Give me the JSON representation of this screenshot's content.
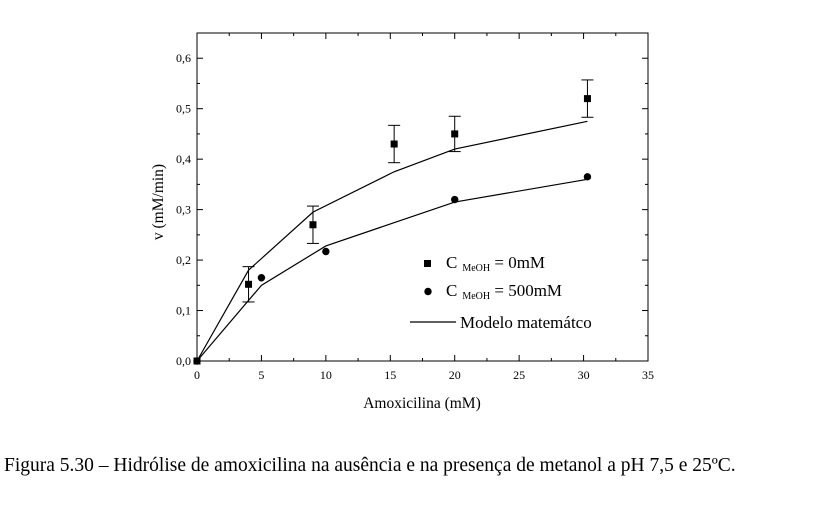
{
  "chart_data": {
    "type": "scatter",
    "xlabel": "Amoxicilina (mM)",
    "ylabel": "v (mM/min)",
    "xlim": [
      0,
      35
    ],
    "ylim": [
      0,
      0.65
    ],
    "xticks": [
      0,
      5,
      10,
      15,
      20,
      25,
      30,
      35
    ],
    "yticks": [
      0.0,
      0.1,
      0.2,
      0.3,
      0.4,
      0.5,
      0.6
    ],
    "ytick_labels": [
      "0,0",
      "0,1",
      "0,2",
      "0,3",
      "0,4",
      "0,5",
      "0,6"
    ],
    "grid": false,
    "legend_position": "bottom-right",
    "series": [
      {
        "name": "C MeOH = 0mM",
        "legend_main": "C",
        "legend_sub": "MeOH",
        "legend_tail": " = 0mM",
        "marker": "square",
        "x": [
          0,
          4,
          9,
          15.3,
          20,
          30.3
        ],
        "y": [
          0,
          0.152,
          0.27,
          0.43,
          0.45,
          0.52
        ],
        "err": [
          0,
          0.035,
          0.037,
          0.037,
          0.035,
          0.037
        ]
      },
      {
        "name": "C MeOH = 500mM",
        "legend_main": "C",
        "legend_sub": "MeOH",
        "legend_tail": " = 500mM",
        "marker": "circle",
        "x": [
          0,
          5,
          10,
          20,
          30.3
        ],
        "y": [
          0,
          0.165,
          0.217,
          0.32,
          0.365
        ]
      }
    ],
    "model_lines": [
      {
        "x": [
          0,
          4,
          9,
          15.3,
          20,
          30.3
        ],
        "y": [
          0,
          0.18,
          0.295,
          0.375,
          0.42,
          0.475
        ]
      },
      {
        "x": [
          0,
          5,
          10,
          20,
          30.3
        ],
        "y": [
          0,
          0.15,
          0.228,
          0.315,
          0.36
        ]
      }
    ],
    "model_label": "Modelo matemátco"
  },
  "caption": {
    "text": "Figura 5.30 – Hidrólise de amoxicilina na ausência e na presença de metanol a pH 7,5 e 25ºC."
  }
}
